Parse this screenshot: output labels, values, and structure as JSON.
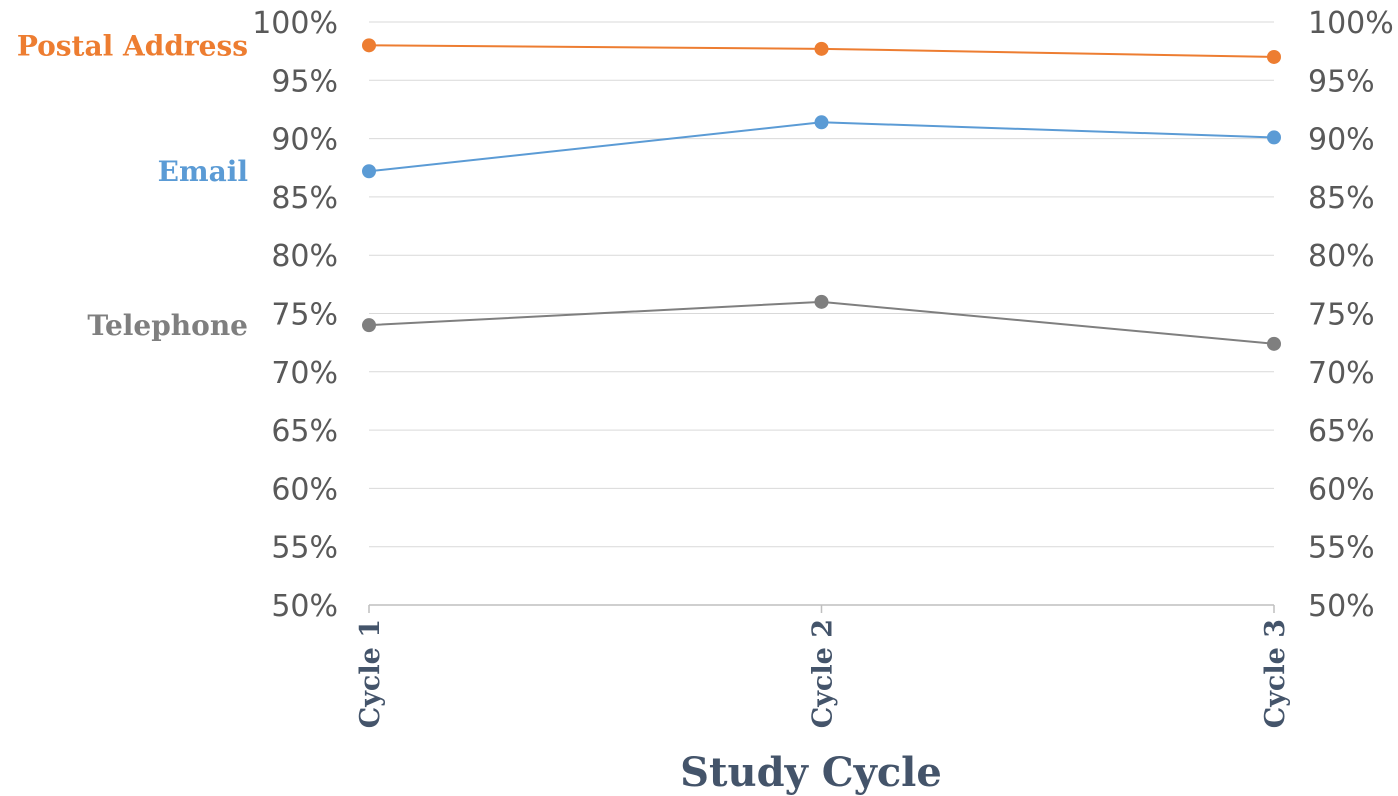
{
  "chart_data": {
    "type": "line",
    "title": "",
    "xlabel": "Study Cycle",
    "ylabel": "",
    "categories": [
      "Cycle 1",
      "Cycle 2",
      "Cycle 3"
    ],
    "ylim": [
      0.5,
      1.0
    ],
    "y_ticks": [
      "50%",
      "55%",
      "60%",
      "65%",
      "70%",
      "75%",
      "80%",
      "85%",
      "90%",
      "95%",
      "100%"
    ],
    "secondary_y_axis": true,
    "grid": true,
    "legend": "none",
    "series": [
      {
        "name": "Postal Address",
        "values": [
          0.98,
          0.977,
          0.97
        ],
        "color": "#ed7d31"
      },
      {
        "name": "Email",
        "values": [
          0.872,
          0.914,
          0.901
        ],
        "color": "#5b9bd5"
      },
      {
        "name": "Telephone",
        "values": [
          0.74,
          0.76,
          0.724
        ],
        "color": "#7f7f7f"
      }
    ],
    "colors": {
      "axis_text": "#595959",
      "category_text": "#44546a",
      "gridline": "#d9d9d9"
    }
  }
}
